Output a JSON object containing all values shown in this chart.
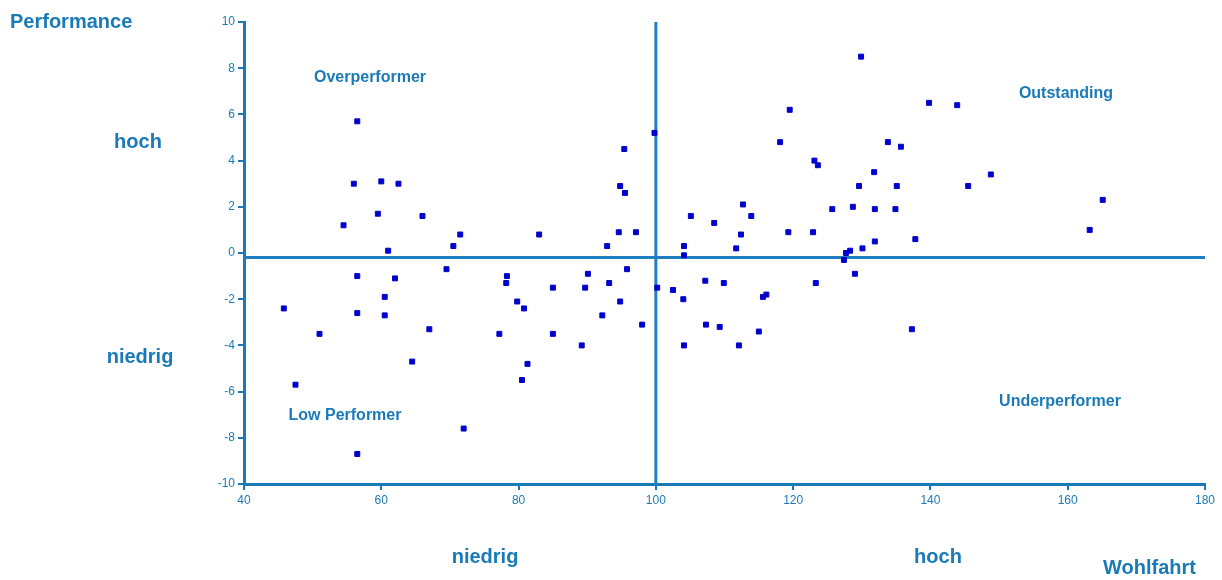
{
  "chart_data": {
    "type": "scatter",
    "xlabel": "Wohlfahrt",
    "ylabel": "Performance",
    "xlim": [
      40,
      180
    ],
    "xticks": [
      40,
      60,
      80,
      100,
      120,
      140,
      160,
      180
    ],
    "ylim": [
      -10,
      10
    ],
    "yticks": [
      -10,
      -8,
      -6,
      -4,
      -2,
      0,
      2,
      4,
      6,
      8,
      10
    ],
    "grid": false,
    "legend": false,
    "marker": "square",
    "ref_lines": [
      {
        "axis": "x",
        "value": 100,
        "color": "#1f7fc0"
      },
      {
        "axis": "y",
        "value": -0.2,
        "color": "#1f7fc0"
      }
    ],
    "annotations": [
      "Overperformer",
      "Outstanding",
      "Low Performer",
      "Underperformer",
      "hoch",
      "niedrig",
      "niedrig",
      "hoch"
    ],
    "series": [
      {
        "color": "#0000cc",
        "x": [
          56.5,
          56,
          60,
          62.5,
          59.5,
          66,
          54.5,
          71.5,
          70.5,
          61,
          56.5,
          62,
          60.5,
          60.5,
          56.5,
          45.8,
          51,
          67,
          64.5,
          47.5,
          56.5,
          72,
          69.5,
          83,
          78.3,
          78.2,
          79.8,
          80.8,
          85,
          85,
          77.2,
          81.3,
          80.5,
          90.1,
          89.7,
          93.2,
          92.9,
          92.2,
          89.2,
          94.8,
          95.5,
          95.4,
          94.6,
          97.1,
          95.8,
          94.8,
          98,
          99.8,
          129.9,
          139.8,
          143.9,
          119.5,
          118.1,
          133.8,
          135.7,
          123.1,
          123.6,
          131.8,
          148.8,
          129.6,
          135.1,
          145.5,
          165.1,
          112.7,
          113.9,
          105.1,
          108.5,
          125.7,
          128.7,
          131.9,
          134.9,
          163.2,
          119.3,
          122.9,
          112.4,
          137.8,
          111.7,
          130.1,
          131.9,
          104.1,
          104.1,
          128.3,
          127.7,
          127.4,
          129,
          123.3,
          107.2,
          109.9,
          100.2,
          102.5,
          104,
          116.1,
          115.6,
          107.3,
          109.3,
          115,
          137.3,
          104.1,
          112.1
        ],
        "values": [
          5.7,
          3.0,
          3.1,
          3.0,
          1.7,
          1.6,
          1.2,
          0.8,
          0.3,
          0.1,
          -1.0,
          -1.1,
          -1.9,
          -2.7,
          -2.6,
          -2.4,
          -3.5,
          -3.3,
          -4.7,
          -5.7,
          -8.7,
          -7.6,
          -0.7,
          0.8,
          -1.0,
          -1.3,
          -2.1,
          -2.4,
          -1.5,
          -3.5,
          -3.5,
          -4.8,
          -5.5,
          -0.9,
          -1.5,
          -1.3,
          0.3,
          -2.7,
          -4.0,
          2.9,
          2.6,
          4.5,
          0.9,
          0.9,
          -0.7,
          -2.1,
          -3.1,
          5.2,
          8.5,
          6.5,
          6.4,
          6.2,
          4.8,
          4.8,
          4.6,
          4.0,
          3.8,
          3.5,
          3.4,
          2.9,
          2.9,
          2.9,
          2.3,
          2.1,
          1.6,
          1.6,
          1.3,
          1.9,
          2.0,
          1.9,
          1.9,
          1.0,
          0.9,
          0.9,
          0.8,
          0.6,
          0.2,
          0.2,
          0.5,
          0.3,
          -0.1,
          0.1,
          0.0,
          -0.3,
          -0.9,
          -1.3,
          -1.2,
          -1.3,
          -1.5,
          -1.6,
          -2.0,
          -1.8,
          -1.9,
          -3.1,
          -3.2,
          -3.4,
          -3.3,
          -4.0,
          -4.0
        ]
      }
    ]
  }
}
